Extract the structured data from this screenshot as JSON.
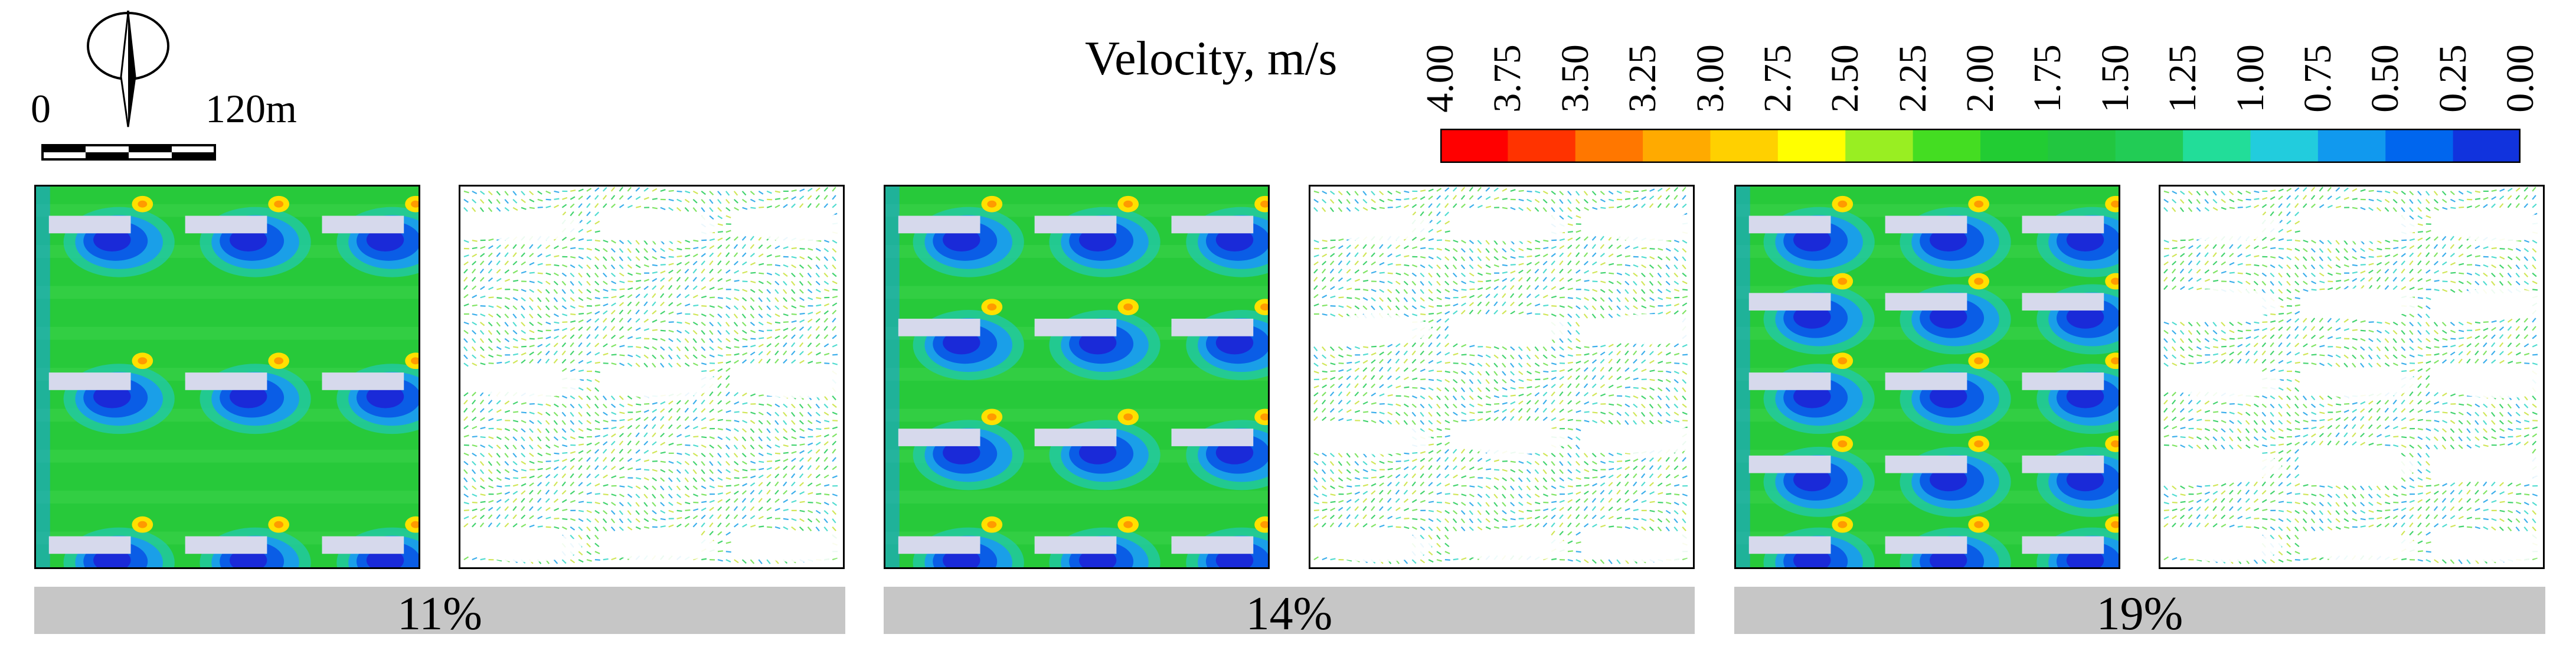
{
  "scale_bar": {
    "zero_label": "0",
    "max_label": "120m",
    "north_icon": "north-arrow-icon"
  },
  "legend": {
    "title": "Velocity, m/s",
    "ticks": [
      "4.00",
      "3.75",
      "3.50",
      "3.25",
      "3.00",
      "2.75",
      "2.50",
      "2.25",
      "2.00",
      "1.75",
      "1.50",
      "1.25",
      "1.00",
      "0.75",
      "0.50",
      "0.25",
      "0.00"
    ],
    "colors": [
      "#ff0000",
      "#ff3300",
      "#ff7700",
      "#ffaa00",
      "#ffd000",
      "#ffff00",
      "#99ee22",
      "#44dd22",
      "#22cc33",
      "#22c640",
      "#22cc55",
      "#22dd99",
      "#22ccdd",
      "#1199ee",
      "#0066ee",
      "#1133dd",
      "#0011ee"
    ]
  },
  "cases": [
    {
      "label": "11%",
      "building_rows": 3
    },
    {
      "label": "14%",
      "building_rows": 4
    },
    {
      "label": "19%",
      "building_rows": 5
    }
  ],
  "panel_types": [
    "velocity-contour",
    "velocity-vectors"
  ]
}
